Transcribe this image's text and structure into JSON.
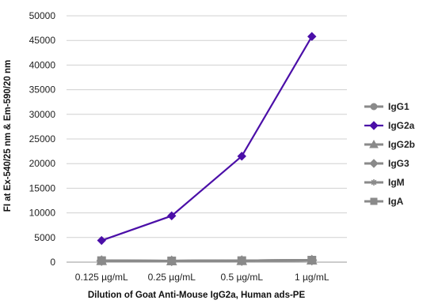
{
  "chart_data": {
    "type": "line",
    "categories": [
      "0.125 µg/mL",
      "0.25 µg/mL",
      "0.5 µg/mL",
      "1 µg/mL"
    ],
    "xlabel": "Dilution of Goat Anti-Mouse IgG2a, Human ads-PE",
    "ylabel": "FI at Ex-540/25 nm & Em-590/20 nm",
    "ylim": [
      0,
      50000
    ],
    "yticks": [
      0,
      5000,
      10000,
      15000,
      20000,
      25000,
      30000,
      35000,
      40000,
      45000,
      50000
    ],
    "grid": "horizontal",
    "legend": "right",
    "series": [
      {
        "name": "IgG1",
        "values": [
          300,
          250,
          300,
          400
        ],
        "color": "#8a8a8a",
        "marker": "circle"
      },
      {
        "name": "IgG2a",
        "values": [
          4400,
          9400,
          21500,
          45800
        ],
        "color": "#4b0fa8",
        "marker": "diamond"
      },
      {
        "name": "IgG2b",
        "values": [
          300,
          250,
          300,
          400
        ],
        "color": "#8a8a8a",
        "marker": "triangle"
      },
      {
        "name": "IgG3",
        "values": [
          300,
          250,
          300,
          400
        ],
        "color": "#8a8a8a",
        "marker": "diamond"
      },
      {
        "name": "IgM",
        "values": [
          300,
          250,
          300,
          400
        ],
        "color": "#8a8a8a",
        "marker": "star"
      },
      {
        "name": "IgA",
        "values": [
          300,
          250,
          300,
          400
        ],
        "color": "#8a8a8a",
        "marker": "square"
      }
    ]
  }
}
